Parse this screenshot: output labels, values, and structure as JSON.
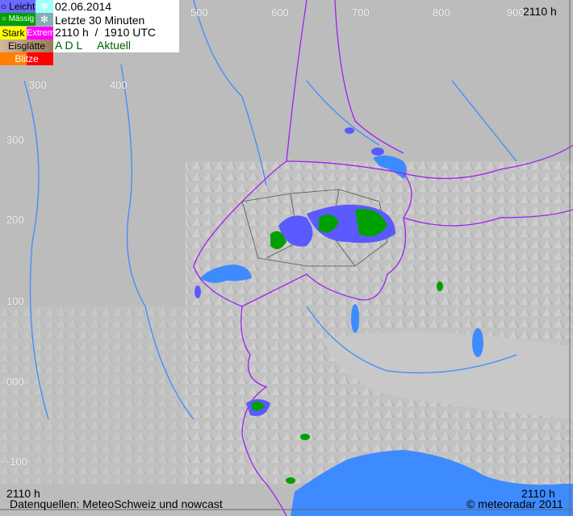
{
  "legend": {
    "items": [
      {
        "label": "Leicht",
        "color": "#6a6aff"
      },
      {
        "label": "Mässig",
        "color": "#00a000"
      },
      {
        "label": "Stark",
        "color": "#ffff00"
      },
      {
        "label": "Extrem",
        "color": "#ff00ff"
      },
      {
        "label": "Eisglätte",
        "color": "#c8b090"
      },
      {
        "label": "Blitze",
        "color": "#ff8000"
      }
    ],
    "snow_icon": "snowflake-icon"
  },
  "info": {
    "date": "02.06.2014",
    "period": "Letzte 30 Minuten",
    "time": "2110 h  /  1910 UTC",
    "product": "A D L",
    "status": "Aktuell"
  },
  "grid": {
    "top": [
      "500",
      "600",
      "700",
      "800",
      "900"
    ],
    "left": [
      "300",
      "200",
      "100",
      "000",
      "-100"
    ],
    "inner": [
      "300",
      "400"
    ]
  },
  "corner_times": {
    "top_right": "2110 h",
    "bottom_left": "2110 h",
    "bottom_right": "2110 h"
  },
  "footer": {
    "sources": "Datenquellen: MeteoSchweiz und nowcast",
    "copyright": "© meteoradar 2011"
  },
  "colors": {
    "water": "#3d8bff",
    "border": "#a020f0",
    "rivers": "#3d8bff",
    "terrain": "#bdbdbd"
  }
}
